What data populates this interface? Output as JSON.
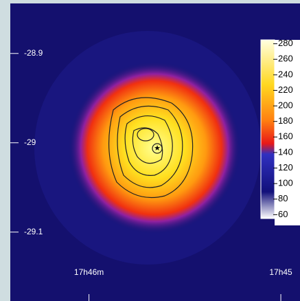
{
  "chart_data": {
    "type": "heatmap",
    "ylim": [
      -29.171,
      -28.844
    ],
    "yticks": [
      -28.9,
      -29,
      -29.1
    ],
    "xlim": [
      1066.41,
      1064.9
    ],
    "xticks": [
      {
        "value": 1066,
        "label": "17h46m"
      },
      {
        "value": 1065,
        "label": "17h45"
      }
    ],
    "clim": [
      55,
      285
    ],
    "cticks": [
      280,
      260,
      240,
      220,
      200,
      180,
      160,
      140,
      120,
      100,
      80,
      60
    ]
  }
}
